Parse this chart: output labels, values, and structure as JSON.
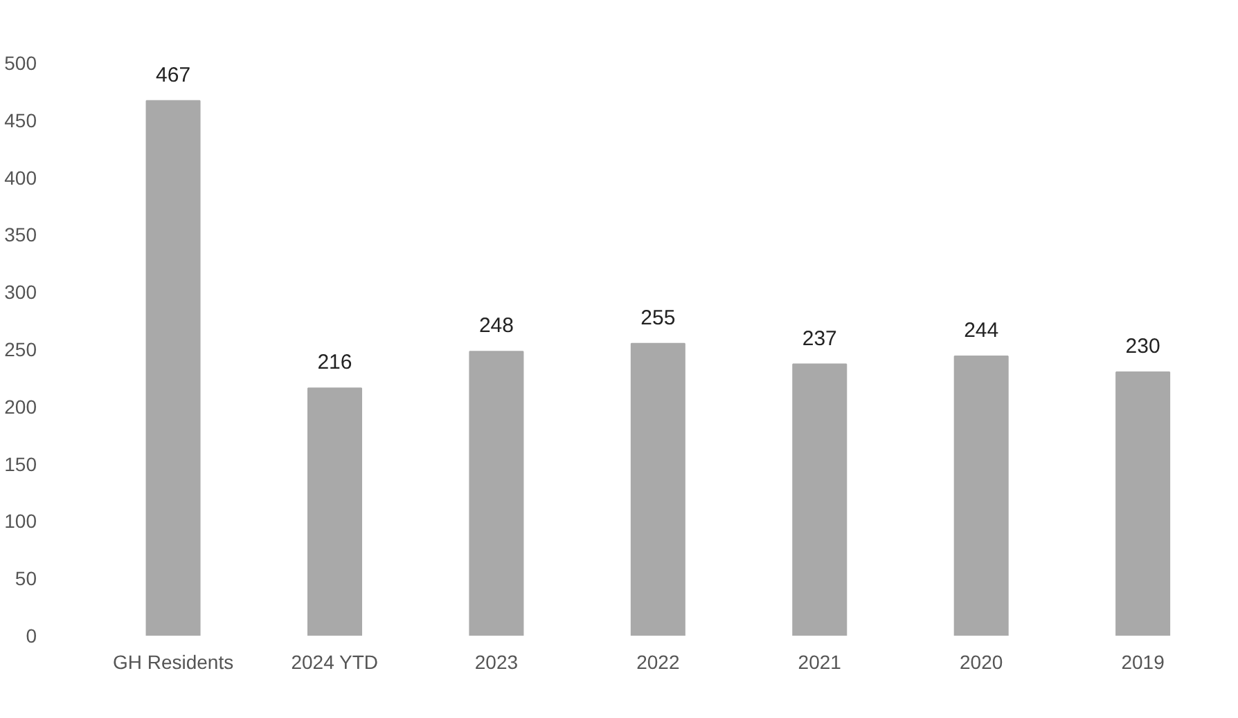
{
  "chart_data": {
    "type": "bar",
    "categories": [
      "GH Residents",
      "2024 YTD",
      "2023",
      "2022",
      "2021",
      "2020",
      "2019"
    ],
    "values": [
      467,
      216,
      248,
      255,
      237,
      244,
      230
    ],
    "color": "#a9a9a9",
    "ylim": [
      0,
      500
    ],
    "yticks": [
      0,
      50,
      100,
      150,
      200,
      250,
      300,
      350,
      400,
      450,
      500
    ],
    "grid": false,
    "data_labels": true
  }
}
